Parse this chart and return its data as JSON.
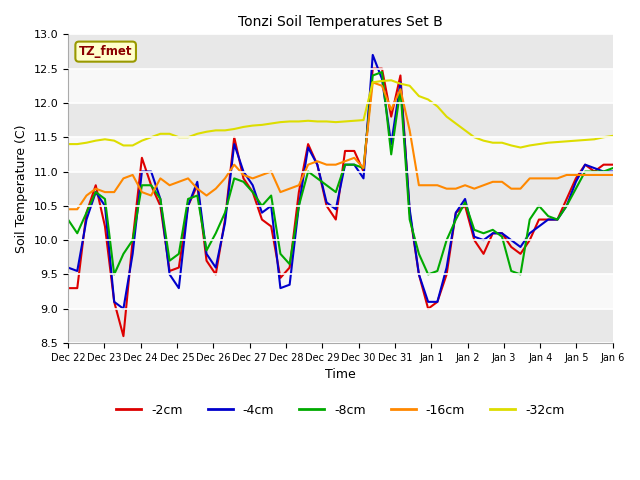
{
  "title": "Tonzi Soil Temperatures Set B",
  "xlabel": "Time",
  "ylabel": "Soil Temperature (C)",
  "ylim": [
    8.5,
    13.0
  ],
  "fig_bg_color": "#ffffff",
  "plot_bg_color": "#f0f0f0",
  "annotation_text": "TZ_fmet",
  "annotation_color": "#8b0000",
  "annotation_bg": "#ffffcc",
  "legend_labels": [
    "-2cm",
    "-4cm",
    "-8cm",
    "-16cm",
    "-32cm"
  ],
  "legend_colors": [
    "#dd0000",
    "#0000cc",
    "#00aa00",
    "#ff8800",
    "#dddd00"
  ],
  "line_width": 1.5,
  "x_tick_labels": [
    "Dec 22",
    "Dec 23",
    "Dec 24",
    "Dec 25",
    "Dec 26",
    "Dec 27",
    "Dec 28",
    "Dec 29",
    "Dec 30",
    "Dec 31",
    "Jan 1",
    "Jan 2",
    "Jan 3",
    "Jan 4",
    "Jan 5",
    "Jan 6"
  ],
  "band_colors": [
    "#e8e8e8",
    "#f8f8f8"
  ],
  "series_2cm": [
    9.3,
    9.3,
    10.4,
    10.8,
    10.2,
    9.1,
    8.6,
    10.0,
    11.2,
    10.8,
    10.5,
    9.55,
    9.6,
    10.5,
    10.8,
    9.7,
    9.5,
    10.3,
    11.5,
    10.9,
    10.7,
    10.3,
    10.2,
    9.45,
    9.6,
    10.7,
    11.4,
    11.1,
    10.5,
    10.3,
    11.3,
    11.3,
    11.0,
    12.5,
    12.5,
    11.8,
    12.4,
    10.4,
    9.5,
    9.0,
    9.1,
    9.5,
    10.4,
    10.5,
    10.0,
    9.8,
    10.1,
    10.1,
    9.9,
    9.8,
    10.0,
    10.3,
    10.3,
    10.3,
    10.6,
    10.9,
    11.1,
    11.0,
    11.1,
    11.1
  ],
  "series_4cm": [
    9.6,
    9.55,
    10.3,
    10.7,
    10.5,
    9.1,
    9.0,
    9.8,
    11.0,
    11.0,
    10.6,
    9.5,
    9.3,
    10.5,
    10.85,
    9.8,
    9.6,
    10.25,
    11.4,
    11.0,
    10.8,
    10.4,
    10.5,
    9.3,
    9.35,
    10.5,
    11.35,
    11.1,
    10.55,
    10.45,
    11.1,
    11.1,
    10.9,
    12.7,
    12.35,
    11.4,
    12.3,
    10.45,
    9.5,
    9.1,
    9.1,
    9.6,
    10.4,
    10.6,
    10.05,
    10.0,
    10.1,
    10.1,
    10.0,
    9.9,
    10.1,
    10.2,
    10.3,
    10.3,
    10.5,
    10.85,
    11.1,
    11.05,
    11.0,
    11.0
  ],
  "series_8cm": [
    10.3,
    10.1,
    10.4,
    10.7,
    10.6,
    9.5,
    9.8,
    10.0,
    10.8,
    10.8,
    10.6,
    9.7,
    9.8,
    10.6,
    10.65,
    9.85,
    10.1,
    10.4,
    10.9,
    10.85,
    10.7,
    10.5,
    10.65,
    9.8,
    9.65,
    10.5,
    11.0,
    10.9,
    10.8,
    10.7,
    11.1,
    11.1,
    11.05,
    12.4,
    12.45,
    11.25,
    12.2,
    10.3,
    9.8,
    9.5,
    9.55,
    10.0,
    10.3,
    10.55,
    10.15,
    10.1,
    10.15,
    10.05,
    9.55,
    9.5,
    10.3,
    10.5,
    10.35,
    10.3,
    10.5,
    10.75,
    11.0,
    11.0,
    11.0,
    11.05
  ],
  "series_16cm": [
    10.45,
    10.45,
    10.65,
    10.75,
    10.7,
    10.7,
    10.9,
    10.95,
    10.7,
    10.65,
    10.9,
    10.8,
    10.85,
    10.9,
    10.75,
    10.65,
    10.75,
    10.9,
    11.1,
    10.95,
    10.9,
    10.95,
    11.0,
    10.7,
    10.75,
    10.8,
    11.1,
    11.15,
    11.1,
    11.1,
    11.15,
    11.2,
    11.05,
    12.3,
    12.25,
    11.9,
    12.2,
    11.6,
    10.8,
    10.8,
    10.8,
    10.75,
    10.75,
    10.8,
    10.75,
    10.8,
    10.85,
    10.85,
    10.75,
    10.75,
    10.9,
    10.9,
    10.9,
    10.9,
    10.95,
    10.95,
    10.95,
    10.95,
    10.95,
    10.95
  ],
  "series_32cm": [
    11.4,
    11.4,
    11.42,
    11.45,
    11.47,
    11.45,
    11.38,
    11.38,
    11.45,
    11.5,
    11.55,
    11.55,
    11.5,
    11.5,
    11.55,
    11.58,
    11.6,
    11.6,
    11.62,
    11.65,
    11.67,
    11.68,
    11.7,
    11.72,
    11.73,
    11.73,
    11.74,
    11.73,
    11.73,
    11.72,
    11.73,
    11.74,
    11.75,
    12.3,
    12.32,
    12.33,
    12.28,
    12.25,
    12.1,
    12.05,
    11.95,
    11.8,
    11.7,
    11.6,
    11.5,
    11.45,
    11.42,
    11.42,
    11.38,
    11.35,
    11.38,
    11.4,
    11.42,
    11.43,
    11.44,
    11.45,
    11.46,
    11.47,
    11.5,
    11.52
  ]
}
